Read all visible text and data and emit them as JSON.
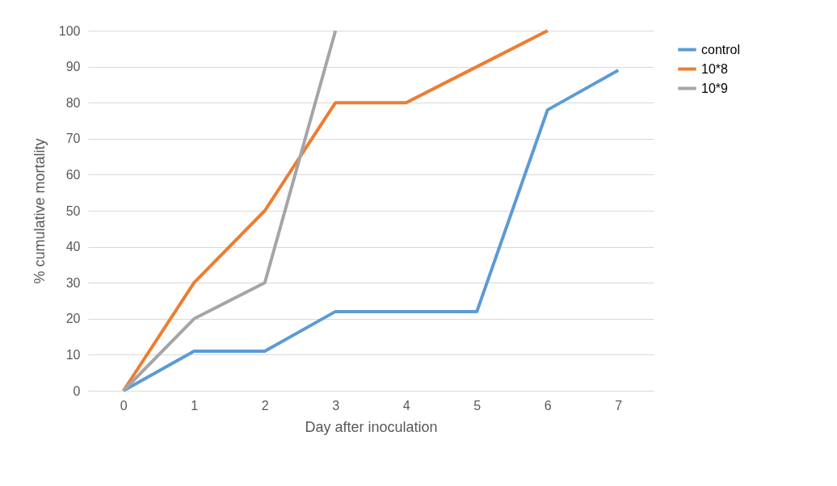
{
  "chart_data": {
    "type": "line",
    "xlabel": "Day after inoculation",
    "ylabel": "% cumulative mortality",
    "categories": [
      "0",
      "1",
      "2",
      "3",
      "4",
      "5",
      "6",
      "7"
    ],
    "series": [
      {
        "name": "control",
        "color": "#5b9bd5",
        "values": [
          0,
          11,
          11,
          22,
          22,
          22,
          78,
          89
        ]
      },
      {
        "name": "10*8",
        "color": "#ed7d31",
        "values": [
          0,
          30,
          50,
          80,
          80,
          90,
          100,
          null
        ]
      },
      {
        "name": "10*9",
        "color": "#a5a5a5",
        "values": [
          0,
          20,
          30,
          100,
          null,
          null,
          null,
          null
        ]
      }
    ],
    "ylim": [
      0,
      100
    ],
    "yticks": [
      0,
      10,
      20,
      30,
      40,
      50,
      60,
      70,
      80,
      90,
      100
    ],
    "grid": "y",
    "legend": "right",
    "marker": "none",
    "line_style": "solid"
  }
}
